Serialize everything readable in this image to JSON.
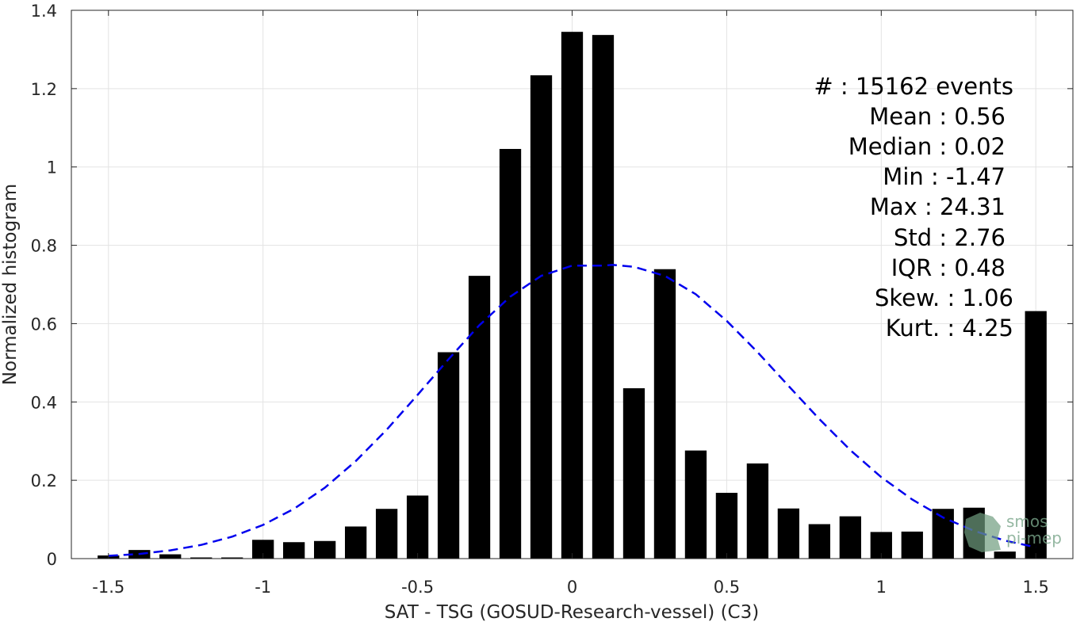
{
  "chart_data": {
    "type": "bar",
    "xlabel": "SAT - TSG (GOSUD-Research-vessel) (C3)",
    "ylabel": "Normalized histogram",
    "xlim": [
      -1.62,
      1.62
    ],
    "ylim": [
      0,
      1.4
    ],
    "x_ticks": [
      -1.5,
      -1,
      -0.5,
      0,
      0.5,
      1,
      1.5
    ],
    "x_tick_labels": [
      "-1.5",
      "-1",
      "-0.5",
      "0",
      "0.5",
      "1",
      "1.5"
    ],
    "y_ticks": [
      0,
      0.2,
      0.4,
      0.6,
      0.8,
      1,
      1.2,
      1.4
    ],
    "y_tick_labels": [
      "0",
      "0.2",
      "0.4",
      "0.6",
      "0.8",
      "1",
      "1.2",
      "1.4"
    ],
    "grid": true,
    "bar_width": 0.07,
    "bar_color": "#000000",
    "bars": {
      "x": [
        -1.5,
        -1.4,
        -1.3,
        -1.2,
        -1.1,
        -1.0,
        -0.9,
        -0.8,
        -0.7,
        -0.6,
        -0.5,
        -0.4,
        -0.3,
        -0.2,
        -0.1,
        0.0,
        0.1,
        0.2,
        0.3,
        0.4,
        0.5,
        0.6,
        0.7,
        0.8,
        0.9,
        1.0,
        1.1,
        1.2,
        1.3,
        1.4,
        1.5
      ],
      "values": [
        0.008,
        0.022,
        0.011,
        0.003,
        0.003,
        0.048,
        0.042,
        0.045,
        0.082,
        0.127,
        0.161,
        0.527,
        0.722,
        1.046,
        1.234,
        1.345,
        1.337,
        0.435,
        0.739,
        0.276,
        0.168,
        0.243,
        0.128,
        0.088,
        0.108,
        0.068,
        0.069,
        0.127,
        0.13,
        0.018,
        0.632
      ]
    },
    "series": [
      {
        "type": "line",
        "style": "dashed",
        "color": "#0000ee",
        "x": [
          -1.5,
          -1.4,
          -1.3,
          -1.2,
          -1.1,
          -1.0,
          -0.9,
          -0.8,
          -0.7,
          -0.6,
          -0.5,
          -0.4,
          -0.3,
          -0.2,
          -0.1,
          0.0,
          0.1,
          0.13,
          0.2,
          0.3,
          0.4,
          0.5,
          0.6,
          0.7,
          0.8,
          0.9,
          1.0,
          1.1,
          1.2,
          1.3,
          1.4,
          1.5
        ],
        "values": [
          0.007,
          0.012,
          0.021,
          0.035,
          0.056,
          0.086,
          0.127,
          0.181,
          0.249,
          0.329,
          0.418,
          0.509,
          0.596,
          0.669,
          0.722,
          0.748,
          0.748,
          0.75,
          0.745,
          0.722,
          0.675,
          0.607,
          0.527,
          0.441,
          0.356,
          0.277,
          0.208,
          0.151,
          0.105,
          0.071,
          0.046,
          0.029
        ]
      }
    ],
    "annotations": [
      "#  : 15162 events",
      "Mean : 0.56",
      "Median : 0.02",
      "Min : -1.47",
      "Max : 24.31",
      "Std : 2.76",
      "IQR : 0.48",
      "Skew. : 1.06",
      "Kurt. : 4.25"
    ]
  },
  "logo": {
    "line1": "smos",
    "line2": "pi-mep"
  }
}
